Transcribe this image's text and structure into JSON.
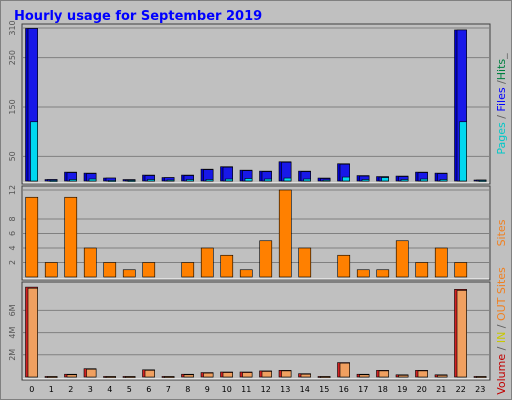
{
  "chart_data": {
    "type": "bar",
    "title": "Hourly usage for September 2019",
    "categories": [
      "0",
      "1",
      "2",
      "3",
      "4",
      "5",
      "6",
      "7",
      "8",
      "9",
      "10",
      "11",
      "12",
      "13",
      "14",
      "15",
      "16",
      "17",
      "18",
      "19",
      "20",
      "21",
      "22",
      "23"
    ],
    "panels": [
      {
        "name": "pages-files-hits",
        "ylim": [
          0,
          310
        ],
        "yticks": [
          "50",
          "150",
          "250",
          "310"
        ],
        "ytick_values": [
          50,
          150,
          250,
          310
        ],
        "side_labels": [
          {
            "text": "Pages",
            "color": "#00c8c8"
          },
          {
            "text": " / ",
            "color": "#606060"
          },
          {
            "text": "Files",
            "color": "#0000ff"
          },
          {
            "text": " /",
            "color": "#606060"
          },
          {
            "text": "Hits",
            "color": "#008040"
          },
          {
            "text": "_",
            "color": "#606060"
          }
        ],
        "series": [
          {
            "name": "Hits",
            "color": "#0000d0",
            "values": [
              309,
              3,
              18,
              16,
              6,
              3,
              12,
              7,
              12,
              24,
              29,
              22,
              20,
              39,
              20,
              6,
              35,
              11,
              9,
              10,
              18,
              16,
              306,
              2
            ]
          },
          {
            "name": "Files",
            "color": "#1818e8",
            "values": [
              309,
              3,
              17,
              15,
              6,
              2,
              11,
              7,
              11,
              23,
              28,
              21,
              19,
              38,
              19,
              5,
              34,
              10,
              8,
              9,
              17,
              15,
              306,
              2
            ]
          },
          {
            "name": "Pages",
            "color": "#00d8f0",
            "values": [
              120,
              1,
              3,
              4,
              1,
              1,
              3,
              2,
              3,
              3,
              4,
              5,
              4,
              6,
              4,
              2,
              8,
              3,
              7,
              3,
              4,
              3,
              120,
              1
            ]
          }
        ]
      },
      {
        "name": "sites",
        "ylim": [
          0,
          12
        ],
        "yticks": [
          "2",
          "4",
          "6",
          "8",
          "12"
        ],
        "ytick_values": [
          2,
          4,
          6,
          8,
          12
        ],
        "side_labels": [
          {
            "text": "Sites",
            "color": "#f08020"
          }
        ],
        "series": [
          {
            "name": "Sites",
            "color": "#ff8000",
            "values": [
              11,
              2,
              11,
              4,
              2,
              1,
              2,
              0,
              2,
              4,
              3,
              1,
              5,
              12,
              4,
              0,
              3,
              1,
              1,
              5,
              2,
              4,
              2,
              0
            ]
          }
        ]
      },
      {
        "name": "volume",
        "ylim": [
          0,
          8.2
        ],
        "yticks": [
          "2M",
          "4M",
          "6M"
        ],
        "ytick_values": [
          2,
          4,
          6
        ],
        "side_labels": [
          {
            "text": "Volume",
            "color": "#c00000"
          },
          {
            "text": " / ",
            "color": "#606060"
          },
          {
            "text": "IN",
            "color": "#c8c800"
          },
          {
            "text": " / ",
            "color": "#606060"
          },
          {
            "text": "OUT",
            "color": "#f08020"
          },
          {
            "text": " Sites",
            "color": "#f08020"
          }
        ],
        "series": [
          {
            "name": "Volume",
            "color": "#d02020",
            "values": [
              8.1,
              0.05,
              0.25,
              0.75,
              0.05,
              0.05,
              0.65,
              0.05,
              0.25,
              0.4,
              0.45,
              0.45,
              0.55,
              0.6,
              0.3,
              0.05,
              1.3,
              0.25,
              0.6,
              0.2,
              0.6,
              0.2,
              7.9,
              0.05
            ]
          },
          {
            "name": "OUT",
            "color": "#f0a060",
            "values": [
              8.0,
              0.04,
              0.2,
              0.7,
              0.04,
              0.04,
              0.6,
              0.04,
              0.2,
              0.35,
              0.4,
              0.4,
              0.5,
              0.55,
              0.25,
              0.04,
              1.25,
              0.2,
              0.55,
              0.15,
              0.55,
              0.15,
              7.8,
              0.04
            ]
          }
        ]
      }
    ]
  }
}
